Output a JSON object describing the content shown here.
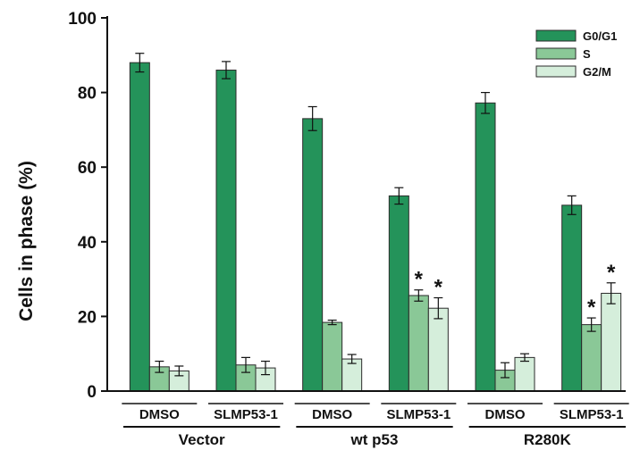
{
  "chart_data": {
    "type": "bar",
    "ylabel": "Cells in phase (%)",
    "ylim": [
      0,
      100
    ],
    "yticks": [
      "0",
      "20",
      "40",
      "60",
      "80",
      "100"
    ],
    "categories": [
      "DMSO",
      "SLMP53-1",
      "DMSO",
      "SLMP53-1",
      "DMSO",
      "SLMP53-1"
    ],
    "groups": [
      {
        "label": "Vector",
        "categories": [
          0,
          1
        ]
      },
      {
        "label": "wt p53",
        "categories": [
          2,
          3
        ]
      },
      {
        "label": "R280K",
        "categories": [
          4,
          5
        ]
      }
    ],
    "series": [
      {
        "name": "G0/G1",
        "color": "#24935a",
        "values": [
          88,
          86,
          73,
          52.3,
          77.2,
          49.8
        ],
        "errors": [
          2.5,
          2.3,
          3.2,
          2.2,
          2.8,
          2.5
        ],
        "significant": [
          false,
          false,
          false,
          false,
          false,
          false
        ]
      },
      {
        "name": "S",
        "color": "#8ac897",
        "values": [
          6.5,
          7,
          18.4,
          25.6,
          5.6,
          17.8
        ],
        "errors": [
          1.5,
          2.0,
          0.6,
          1.5,
          2.0,
          1.8
        ],
        "significant": [
          false,
          false,
          false,
          true,
          false,
          true
        ]
      },
      {
        "name": "G2/M",
        "color": "#d5eedb",
        "values": [
          5.4,
          6.2,
          8.6,
          22.2,
          9,
          26.2
        ],
        "errors": [
          1.3,
          1.8,
          1.2,
          2.8,
          1.0,
          2.8
        ],
        "significant": [
          false,
          false,
          false,
          true,
          false,
          true
        ]
      }
    ],
    "significance_marker": "*",
    "legend": "top-right",
    "grid": false
  }
}
